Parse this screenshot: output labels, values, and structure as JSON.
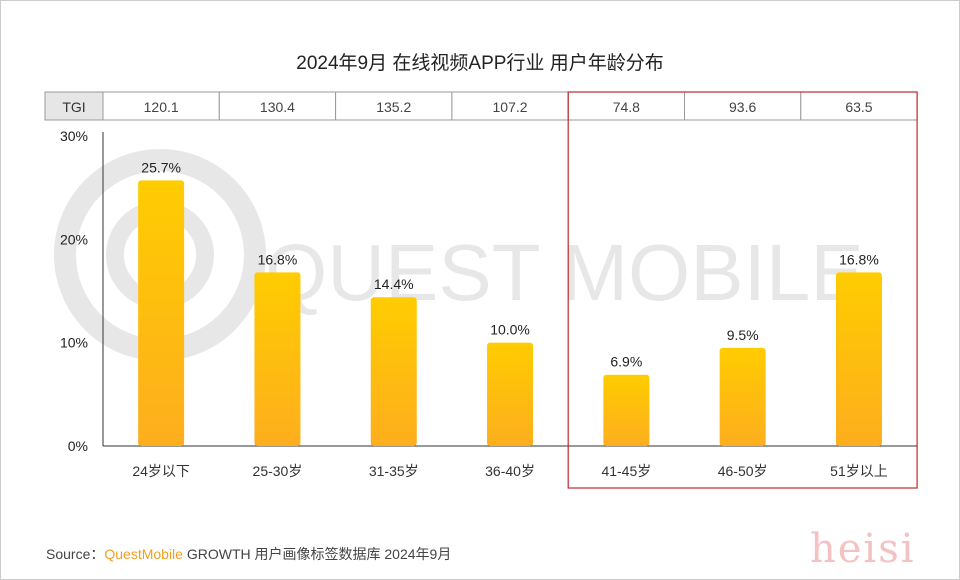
{
  "chart_data": {
    "type": "bar",
    "title": "2024年9月 在线视频APP行业 用户年龄分布",
    "categories": [
      "24岁以下",
      "25-30岁",
      "31-35岁",
      "36-40岁",
      "41-45岁",
      "46-50岁",
      "51岁以上"
    ],
    "values": [
      25.7,
      16.8,
      14.4,
      10.0,
      6.9,
      9.5,
      16.8
    ],
    "value_labels": [
      "25.7%",
      "16.8%",
      "14.4%",
      "10.0%",
      "6.9%",
      "9.5%",
      "16.8%"
    ],
    "ylim": [
      0,
      30
    ],
    "yticks": [
      "0%",
      "10%",
      "20%",
      "30%"
    ],
    "tgi_label": "TGI",
    "tgi": [
      "120.1",
      "130.4",
      "135.2",
      "107.2",
      "74.8",
      "93.6",
      "63.5"
    ],
    "highlight_categories": [
      "41-45岁",
      "46-50岁",
      "51岁以上"
    ],
    "bar_color": "#ffc20e",
    "highlight_color": "#c0282d"
  },
  "watermark": "QUEST MOBILE",
  "source": {
    "label": "Source：",
    "brand": "QuestMobile",
    "text": " GROWTH 用户画像标签数据库 2024年9月"
  },
  "corner_mark": "heisi"
}
